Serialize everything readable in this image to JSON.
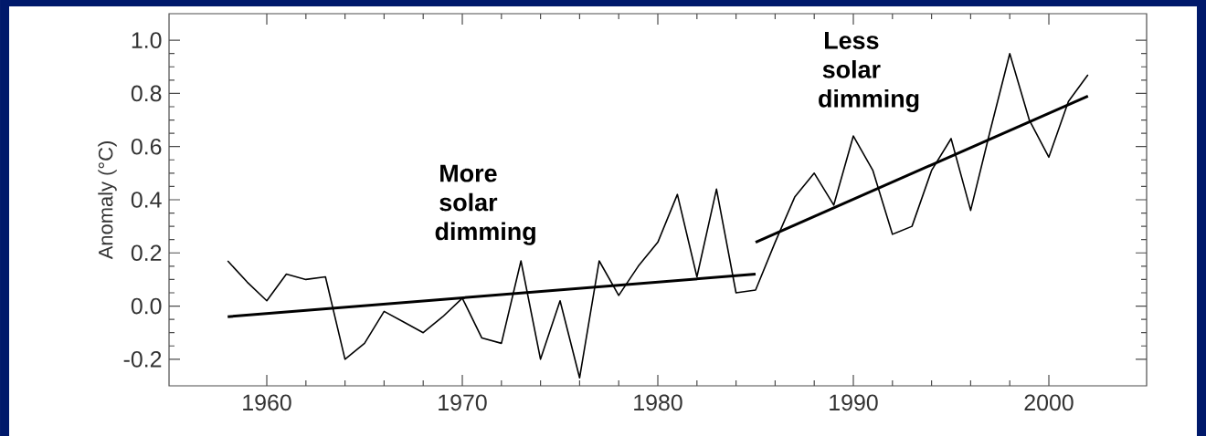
{
  "chart_data": {
    "type": "line",
    "ylabel": "Anomaly (°C)",
    "annotations": [
      "More solar dimming",
      "Less solar dimming"
    ],
    "xlim": [
      1955,
      2005
    ],
    "ylim": [
      -0.3,
      1.1
    ],
    "xticks": [
      1960,
      1970,
      1980,
      1990,
      2000
    ],
    "yticks": [
      {
        "value": -0.2,
        "label": "-0.2"
      },
      {
        "value": 0,
        "label": "0.0"
      },
      0.2,
      0.4,
      0.6,
      0.8,
      {
        "value": 1,
        "label": "1.0"
      }
    ],
    "marker": "none",
    "line_style": "solid",
    "x": [
      1958,
      1959,
      1960,
      1961,
      1962,
      1963,
      1964,
      1965,
      1966,
      1967,
      1968,
      1969,
      1970,
      1971,
      1972,
      1973,
      1974,
      1975,
      1976,
      1977,
      1978,
      1979,
      1980,
      1981,
      1982,
      1983,
      1984,
      1985,
      1986,
      1987,
      1988,
      1989,
      1990,
      1991,
      1992,
      1993,
      1994,
      1995,
      1996,
      1997,
      1998,
      1999,
      2000,
      2001,
      2002
    ],
    "series": [
      {
        "color": "#000000",
        "values": [
          0.17,
          0.09,
          0.02,
          0.12,
          0.1,
          0.11,
          -0.2,
          -0.14,
          -0.02,
          -0.06,
          -0.1,
          -0.04,
          0.03,
          -0.12,
          -0.14,
          0.17,
          -0.2,
          0.02,
          -0.27,
          0.17,
          0.04,
          0.15,
          0.24,
          0.42,
          0.11,
          0.44,
          0.05,
          0.06,
          0.24,
          0.41,
          0.5,
          0.38,
          0.64,
          0.51,
          0.27,
          0.3,
          0.51,
          0.63,
          0.36,
          0.66,
          0.95,
          0.7,
          0.56,
          0.77,
          0.87
        ]
      },
      {
        "color": "#000000",
        "x": [
          1958,
          1985
        ],
        "values": [
          -0.04,
          0.12
        ]
      },
      {
        "color": "#000000",
        "x": [
          1985,
          2002
        ],
        "values": [
          0.24,
          0.79
        ]
      }
    ]
  }
}
